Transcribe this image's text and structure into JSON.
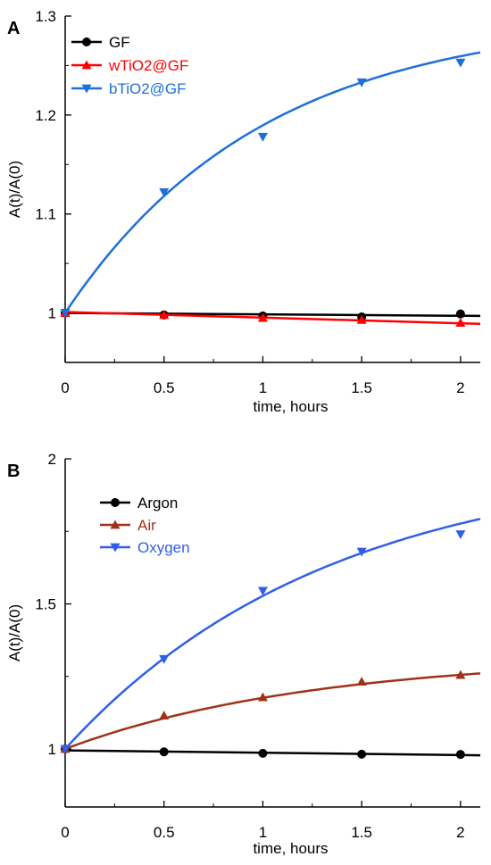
{
  "figure": {
    "background": "#ffffff"
  },
  "chart_data": [
    {
      "type": "line",
      "panel_label": "A",
      "xlabel": "time, hours",
      "ylabel": "A(t)/A(0)",
      "xlim": [
        0,
        2.1
      ],
      "ylim": [
        0.95,
        1.3
      ],
      "xticks": [
        0,
        0.5,
        1,
        1.5,
        2
      ],
      "xtick_labels": [
        "0",
        "0.5",
        "1",
        "1.5",
        "2"
      ],
      "yticks": [
        1,
        1.1,
        1.2,
        1.3
      ],
      "ytick_labels": [
        "1",
        "1.1",
        "1.2",
        "1.3"
      ],
      "grid": false,
      "legend_position": "top-left",
      "series": [
        {
          "name": "GF",
          "color": "#000000",
          "marker": "circle",
          "x": [
            0,
            0.5,
            1,
            1.5,
            2
          ],
          "y": [
            1.0,
            0.998,
            0.997,
            0.996,
            0.999
          ],
          "fit": {
            "x": [
              0,
              2.1
            ],
            "y": [
              1.0,
              0.997
            ]
          }
        },
        {
          "name": "wTiO2@GF",
          "color": "#ff0000",
          "marker": "triangle-up",
          "x": [
            0,
            0.5,
            1,
            1.5,
            2
          ],
          "y": [
            1.0,
            0.998,
            0.995,
            0.993,
            0.99
          ],
          "fit": {
            "x": [
              0,
              2.1
            ],
            "y": [
              1.001,
              0.989
            ]
          }
        },
        {
          "name": "bTiO2@GF",
          "color": "#1e6fd9",
          "marker": "triangle-down",
          "x": [
            0,
            0.5,
            1,
            1.5,
            2
          ],
          "y": [
            1.0,
            1.122,
            1.178,
            1.233,
            1.253
          ],
          "fit": {
            "type": "exp_rise",
            "y0": 1.0,
            "amplitude": 0.3,
            "rate": 1.0,
            "xmax": 2.1
          }
        }
      ]
    },
    {
      "type": "line",
      "panel_label": "B",
      "xlabel": "time, hours",
      "ylabel": "A(t)/A(0)",
      "xlim": [
        0,
        2.1
      ],
      "ylim": [
        0.8,
        2.0
      ],
      "xticks": [
        0,
        0.5,
        1,
        1.5,
        2
      ],
      "xtick_labels": [
        "0",
        "0.5",
        "1",
        "1.5",
        "2"
      ],
      "yticks": [
        1,
        1.5,
        2
      ],
      "ytick_labels": [
        "1",
        "1.5",
        "2"
      ],
      "grid": false,
      "legend_position": "top-left",
      "series": [
        {
          "name": "Argon",
          "color": "#000000",
          "marker": "circle",
          "x": [
            0,
            0.5,
            1,
            1.5,
            2
          ],
          "y": [
            1.0,
            0.99,
            0.985,
            0.982,
            0.981
          ],
          "fit": {
            "x": [
              0,
              2.1
            ],
            "y": [
              0.995,
              0.978
            ]
          }
        },
        {
          "name": "Air",
          "color": "#a0321a",
          "marker": "triangle-up",
          "x": [
            0,
            0.5,
            1,
            1.5,
            2
          ],
          "y": [
            1.0,
            1.115,
            1.178,
            1.232,
            1.255
          ],
          "fit": {
            "type": "exp_rise",
            "y0": 1.0,
            "amplitude": 0.32,
            "rate": 0.8,
            "xmax": 2.1
          }
        },
        {
          "name": "Oxygen",
          "color": "#2f5fe8",
          "marker": "triangle-down",
          "x": [
            0,
            0.5,
            1,
            1.5,
            2
          ],
          "y": [
            1.0,
            1.31,
            1.545,
            1.68,
            1.74
          ],
          "fit": {
            "type": "exp_rise",
            "y0": 1.0,
            "amplitude": 1.0,
            "rate": 0.75,
            "xmax": 2.1
          }
        }
      ]
    }
  ]
}
